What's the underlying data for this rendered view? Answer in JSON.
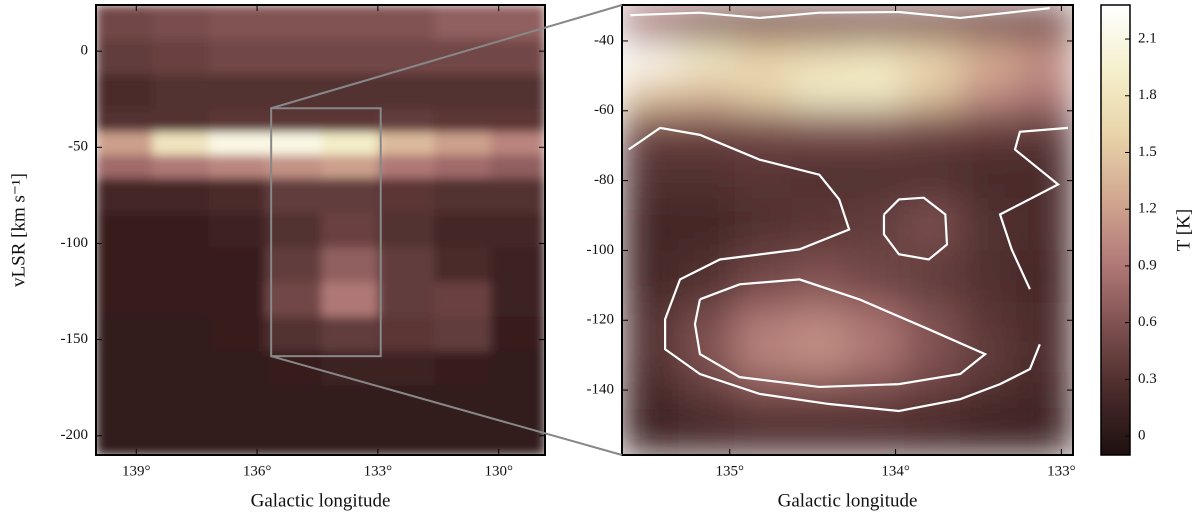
{
  "chart_data": [
    {
      "type": "heatmap",
      "xlabel": "Galactic longitude",
      "ylabel": "vLSR [km s⁻¹]",
      "xlim": [
        140,
        128.85
      ],
      "ylim": [
        -210,
        24
      ],
      "xticks": [
        {
          "value": 139,
          "label": "139°"
        },
        {
          "value": 136,
          "label": "136°"
        },
        {
          "value": 133,
          "label": "133°"
        },
        {
          "value": 130,
          "label": "130°"
        }
      ],
      "yticks": [
        0,
        -50,
        -100,
        -150,
        -200
      ],
      "x_edges": [
        140,
        138.6,
        137.2,
        135.8,
        134.4,
        133,
        131.6,
        130.2,
        128.85
      ],
      "y_edges": [
        24,
        6,
        -12,
        -30,
        -42,
        -54,
        -66,
        -84,
        -102,
        -120,
        -138,
        -156,
        -174,
        -210
      ],
      "z": [
        [
          0.5,
          0.55,
          0.6,
          0.6,
          0.6,
          0.6,
          0.7,
          0.7
        ],
        [
          0.4,
          0.45,
          0.5,
          0.5,
          0.5,
          0.5,
          0.5,
          0.5
        ],
        [
          0.25,
          0.3,
          0.3,
          0.3,
          0.3,
          0.3,
          0.3,
          0.3
        ],
        [
          0.3,
          0.3,
          0.35,
          0.35,
          0.35,
          0.4,
          0.35,
          0.35
        ],
        [
          1.2,
          1.8,
          2.1,
          2.1,
          1.9,
          1.4,
          1.2,
          1.0
        ],
        [
          0.8,
          0.9,
          1.0,
          1.1,
          1.2,
          0.9,
          0.8,
          0.7
        ],
        [
          0.2,
          0.2,
          0.25,
          0.4,
          0.4,
          0.35,
          0.3,
          0.3
        ],
        [
          0.1,
          0.1,
          0.15,
          0.3,
          0.45,
          0.3,
          0.2,
          0.2
        ],
        [
          0.1,
          0.1,
          0.1,
          0.4,
          0.7,
          0.4,
          0.25,
          0.15
        ],
        [
          0.1,
          0.1,
          0.1,
          0.5,
          0.9,
          0.4,
          0.45,
          0.15
        ],
        [
          0.05,
          0.05,
          0.1,
          0.3,
          0.4,
          0.35,
          0.4,
          0.1
        ],
        [
          0.05,
          0.05,
          0.05,
          0.1,
          0.15,
          0.15,
          0.1,
          0.05
        ],
        [
          0.05,
          0.05,
          0.05,
          0.05,
          0.05,
          0.05,
          0.05,
          0.05
        ]
      ]
    },
    {
      "type": "heatmap",
      "xlabel": "Galactic longitude",
      "xlim": [
        135.65,
        132.93
      ],
      "ylim": [
        -158.6,
        -29.7
      ],
      "xticks": [
        {
          "value": 135,
          "label": "135°"
        },
        {
          "value": 134,
          "label": "134°"
        },
        {
          "value": 133,
          "label": "133°"
        }
      ],
      "yticks": [
        -40,
        -60,
        -80,
        -100,
        -120,
        -140
      ],
      "x_edges": [
        135.65,
        135.31,
        134.97,
        134.63,
        134.29,
        133.95,
        133.61,
        133.27,
        132.93
      ],
      "y_edges": [
        -29.7,
        -40,
        -50,
        -60,
        -70,
        -85,
        -100,
        -115,
        -125,
        -135,
        -145,
        -158.6
      ],
      "z": [
        [
          0.8,
          0.6,
          0.55,
          0.55,
          0.55,
          0.55,
          0.5,
          0.5
        ],
        [
          2.2,
          1.9,
          1.6,
          1.7,
          1.8,
          1.6,
          1.3,
          1.1
        ],
        [
          1.5,
          1.4,
          1.6,
          1.9,
          1.9,
          1.5,
          1.1,
          0.9
        ],
        [
          0.5,
          0.5,
          0.55,
          0.6,
          0.6,
          0.5,
          0.45,
          0.4
        ],
        [
          0.3,
          0.3,
          0.35,
          0.3,
          0.3,
          0.3,
          0.25,
          0.25
        ],
        [
          0.2,
          0.2,
          0.3,
          0.35,
          0.4,
          0.55,
          0.3,
          0.25
        ],
        [
          0.2,
          0.3,
          0.5,
          0.6,
          0.5,
          0.4,
          0.3,
          0.2
        ],
        [
          0.3,
          0.55,
          0.9,
          1.0,
          0.85,
          0.6,
          0.35,
          0.25
        ],
        [
          0.3,
          0.6,
          1.0,
          1.1,
          0.9,
          0.6,
          0.4,
          0.25
        ],
        [
          0.2,
          0.4,
          0.6,
          0.6,
          0.55,
          0.45,
          0.3,
          0.2
        ],
        [
          0.15,
          0.2,
          0.25,
          0.25,
          0.25,
          0.2,
          0.15,
          0.15
        ]
      ],
      "contour_color": "#ffffff",
      "contours": [
        {
          "x": [
            135.61,
            135.42,
            135.18,
            134.82,
            134.46,
            134.34,
            134.28,
            134.58,
            135.06,
            135.3,
            135.39,
            135.39,
            135.18,
            134.82,
            134.4,
            133.98,
            133.61,
            133.37,
            133.19,
            133.13
          ],
          "y": [
            -71.1,
            -64.9,
            -66.9,
            -74,
            -78.3,
            -85.4,
            -94,
            -99.7,
            -102.6,
            -108.3,
            -119.7,
            -128.3,
            -135.4,
            -141.1,
            -144,
            -146,
            -142.6,
            -138.3,
            -134,
            -126.9
          ]
        },
        {
          "x": [
            135.18,
            134.94,
            134.58,
            134.22,
            133.8,
            133.46,
            133.61,
            133.98,
            134.46,
            134.94,
            135.18,
            135.21,
            135.18
          ],
          "y": [
            -114,
            -109.7,
            -108.3,
            -114,
            -122.6,
            -129.7,
            -135.4,
            -138.3,
            -139.1,
            -136.3,
            -129.7,
            -121.1,
            -114
          ]
        },
        {
          "x": [
            134.07,
            133.98,
            133.83,
            133.7,
            133.69,
            133.8,
            133.98,
            134.07,
            134.07
          ],
          "y": [
            -89.7,
            -85.4,
            -84.9,
            -89.7,
            -98.3,
            -102.6,
            -101.1,
            -95.4,
            -89.7
          ]
        },
        {
          "x": [
            132.96,
            133.25,
            133.28,
            133.02,
            133.37,
            133.3,
            133.19
          ],
          "y": [
            -64.9,
            -66,
            -71.1,
            -81.1,
            -89.7,
            -99.7,
            -111.1
          ]
        },
        {
          "x": [
            135.6,
            135.18,
            134.82,
            134.46,
            133.98,
            133.61,
            133.07
          ],
          "y": [
            -32.6,
            -31.9,
            -33.4,
            -31.9,
            -31.7,
            -33.4,
            -30.6
          ]
        }
      ],
      "colorbar": {
        "label": "T [K]",
        "lim": [
          -0.1,
          2.28
        ],
        "ticks": [
          0,
          0.3,
          0.6,
          0.9,
          1.2,
          1.5,
          1.8,
          2.1
        ],
        "colormap": [
          "#1e1010",
          "#4a2a2a",
          "#7e5050",
          "#b27a78",
          "#d2a890",
          "#e8d4aa",
          "#f5f0cc",
          "#ffffff"
        ]
      }
    }
  ]
}
